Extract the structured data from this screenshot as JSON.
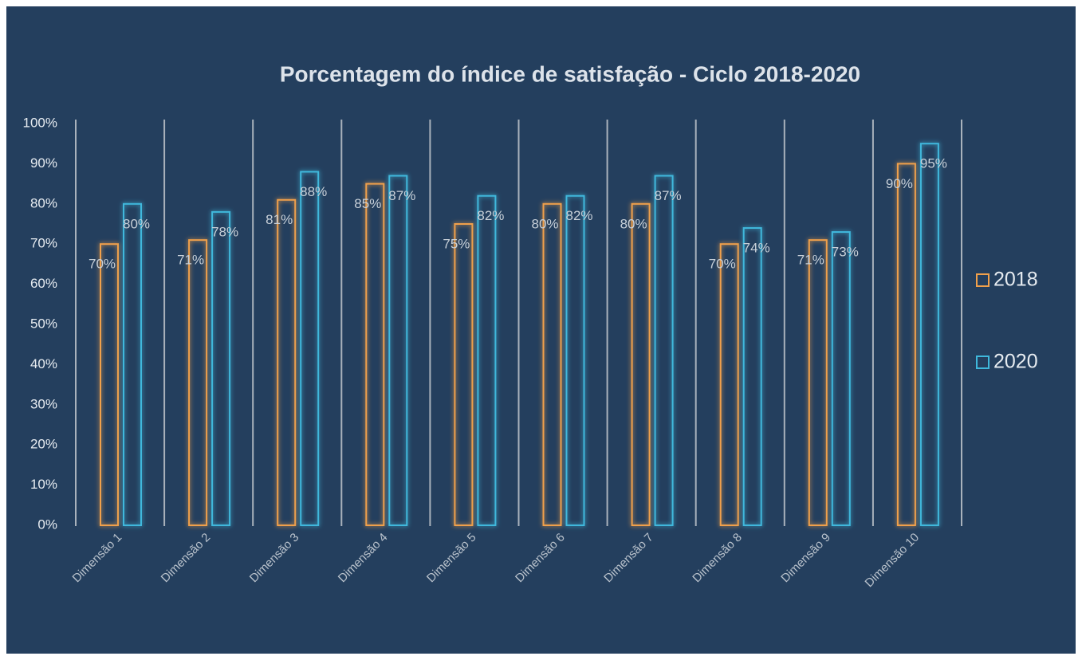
{
  "chart_data": {
    "type": "bar",
    "title": "Porcentagem do índice de satisfação - Ciclo 2018-2020",
    "categories": [
      "Dimensão 1",
      "Dimensão 2",
      "Dimensão 3",
      "Dimensão 4",
      "Dimensão 5",
      "Dimensão 6",
      "Dimensão 7",
      "Dimensão 8",
      "Dimensão 9",
      "Dimensão 10"
    ],
    "series": [
      {
        "name": "2018",
        "color": "#f0a04b",
        "values": [
          70,
          71,
          81,
          85,
          75,
          80,
          80,
          70,
          71,
          90
        ],
        "value_labels": [
          "70%",
          "71%",
          "81%",
          "85%",
          "75%",
          "80%",
          "80%",
          "70%",
          "71%",
          "90%"
        ]
      },
      {
        "name": "2020",
        "color": "#3fb8dc",
        "values": [
          80,
          78,
          88,
          87,
          82,
          82,
          87,
          74,
          73,
          95
        ],
        "value_labels": [
          "80%",
          "78%",
          "88%",
          "87%",
          "82%",
          "82%",
          "87%",
          "74%",
          "73%",
          "95%"
        ]
      }
    ],
    "ylim": [
      0,
      100
    ],
    "yticks": [
      {
        "value": 0,
        "label": "0%"
      },
      {
        "value": 10,
        "label": "10%"
      },
      {
        "value": 20,
        "label": "20%"
      },
      {
        "value": 30,
        "label": "30%"
      },
      {
        "value": 40,
        "label": "40%"
      },
      {
        "value": 50,
        "label": "50%"
      },
      {
        "value": 60,
        "label": "60%"
      },
      {
        "value": 70,
        "label": "70%"
      },
      {
        "value": 80,
        "label": "80%"
      },
      {
        "value": 90,
        "label": "90%"
      },
      {
        "value": 100,
        "label": "100%"
      }
    ],
    "legend": "right"
  }
}
